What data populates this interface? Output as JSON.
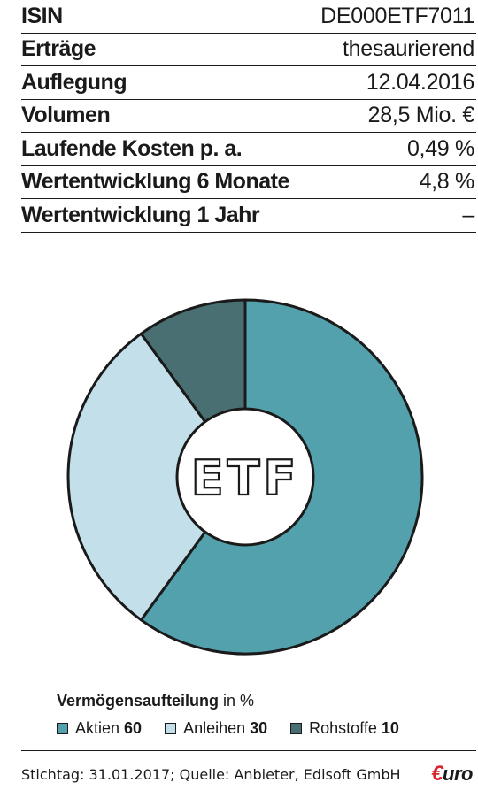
{
  "facts": [
    {
      "label": "ISIN",
      "value": "DE000ETF7011"
    },
    {
      "label": "Erträge",
      "value": "thesaurierend"
    },
    {
      "label": "Auflegung",
      "value": "12.04.2016"
    },
    {
      "label": "Volumen",
      "value": "28,5 Mio. €"
    },
    {
      "label": "Laufende Kosten p. a.",
      "value": "0,49 %"
    },
    {
      "label": "Wertentwicklung 6 Monate",
      "value": "4,8 %"
    },
    {
      "label": "Wertentwicklung 1 Jahr",
      "value": "–"
    }
  ],
  "chart_data": {
    "type": "pie",
    "center_label": "ETF",
    "title_bold": "Vermögensaufteilung",
    "title_rest": " in %",
    "slices": [
      {
        "name": "Aktien",
        "value": 60,
        "color": "#53a1ad"
      },
      {
        "name": "Anleihen",
        "value": 30,
        "color": "#c3e0ea"
      },
      {
        "name": "Rohstoffe",
        "value": 10,
        "color": "#4a6f73"
      }
    ],
    "legend_placement": "bottom"
  },
  "footer": {
    "source": "Stichtag: 31.01.2017; Quelle: Anbieter, Edisoft GmbH",
    "logo_mark": "€",
    "logo_text": "uro"
  }
}
